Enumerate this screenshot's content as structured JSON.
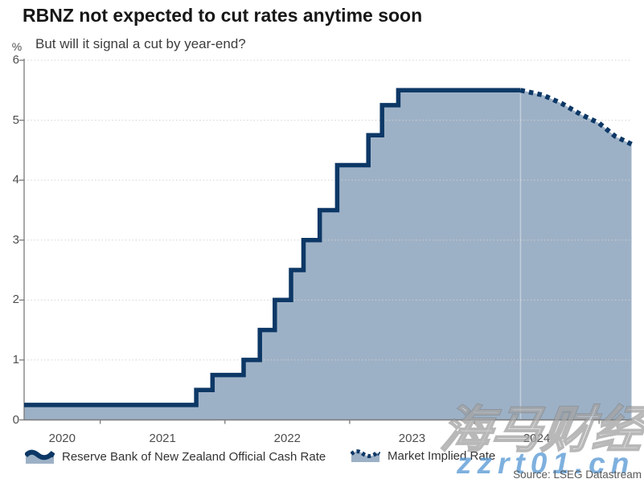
{
  "source": "Source: LSEG Datastream",
  "watermark": {
    "cjk": "海马财经",
    "site": "zzrt01.cn"
  },
  "colors": {
    "line": "#0d3866",
    "fill": "#9db1c6",
    "axis": "#7a7a7a",
    "grid": "#cfcfcf",
    "watermark_blue": "#5b9bd5"
  },
  "chart_data": {
    "type": "area",
    "title": "RBNZ not expected to cut rates anytime soon",
    "subtitle": "But will it signal a cut by year-end?",
    "unit_label": "%",
    "xlim": [
      2020.39,
      2025.26
    ],
    "ylim": [
      0,
      6
    ],
    "y_ticks": [
      0,
      1,
      2,
      3,
      4,
      5,
      6
    ],
    "x_year_labels": [
      "2020",
      "2021",
      "2022",
      "2023",
      "2024"
    ],
    "x_year_boundaries": [
      2021,
      2022,
      2023,
      2024,
      2025
    ],
    "grid": "dotted-horizontal",
    "legend_position": "bottom",
    "series": [
      {
        "name": "Reserve Bank of New Zealand Official Cash Rate",
        "style": "solid-step-area",
        "steps": [
          {
            "date": "2020-03",
            "x": 2020.39,
            "rate": 0.25
          },
          {
            "date": "2021-10",
            "x": 2021.77,
            "rate": 0.5
          },
          {
            "date": "2021-11",
            "x": 2021.9,
            "rate": 0.75
          },
          {
            "date": "2022-02",
            "x": 2022.15,
            "rate": 1.0
          },
          {
            "date": "2022-04",
            "x": 2022.28,
            "rate": 1.5
          },
          {
            "date": "2022-05",
            "x": 2022.4,
            "rate": 2.0
          },
          {
            "date": "2022-07",
            "x": 2022.53,
            "rate": 2.5
          },
          {
            "date": "2022-08",
            "x": 2022.63,
            "rate": 3.0
          },
          {
            "date": "2022-10",
            "x": 2022.76,
            "rate": 3.5
          },
          {
            "date": "2022-11",
            "x": 2022.9,
            "rate": 4.25
          },
          {
            "date": "2023-02",
            "x": 2023.15,
            "rate": 4.75
          },
          {
            "date": "2023-04",
            "x": 2023.26,
            "rate": 5.25
          },
          {
            "date": "2023-05",
            "x": 2023.39,
            "rate": 5.5
          }
        ],
        "end_x": 2024.37
      },
      {
        "name": "Market Implied Rate",
        "style": "dotted-line",
        "points": [
          {
            "x": 2024.37,
            "y": 5.5
          },
          {
            "x": 2024.55,
            "y": 5.42
          },
          {
            "x": 2024.7,
            "y": 5.28
          },
          {
            "x": 2024.85,
            "y": 5.1
          },
          {
            "x": 2025.0,
            "y": 4.95
          },
          {
            "x": 2025.13,
            "y": 4.73
          },
          {
            "x": 2025.26,
            "y": 4.6
          }
        ]
      }
    ]
  }
}
